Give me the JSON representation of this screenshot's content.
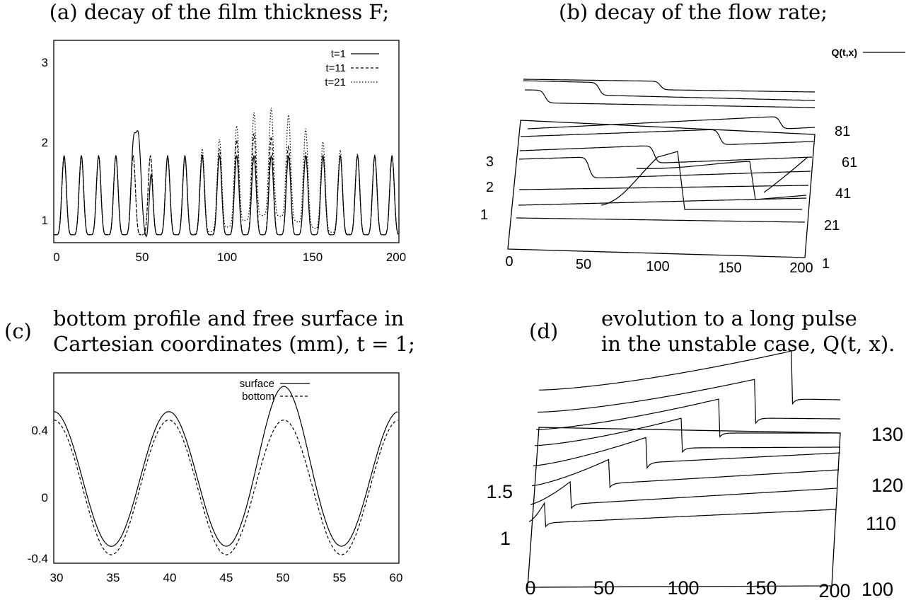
{
  "captions": {
    "a": "(a) decay of the film thickness F;",
    "b": "(b) decay of the flow rate;",
    "c_label": "(c)",
    "c_line1": "bottom profile and free surface in",
    "c_line2": "Cartesian coordinates (mm), t = 1;",
    "d_label": "(d)",
    "d_line1": "evolution to a long pulse",
    "d_line2": "in the unstable case, Q(t, x)."
  },
  "chart_data": [
    {
      "id": "a",
      "type": "line",
      "title": "(a) decay of the film thickness F;",
      "xlim": [
        0,
        200
      ],
      "ylim": [
        0.7,
        3.25
      ],
      "xticks": [
        "0",
        "50",
        "100",
        "150",
        "200"
      ],
      "yticks": [
        "1",
        "2",
        "3"
      ],
      "series": [
        {
          "name": "t=1",
          "dash": "solid"
        },
        {
          "name": "t=11",
          "dash": "dashed"
        },
        {
          "name": "t=21",
          "dash": "dotted"
        }
      ]
    },
    {
      "id": "b",
      "type": "line",
      "title": "(b) decay of the flow rate;",
      "legend": "Q(t,x)",
      "xticks": [
        "0",
        "50",
        "100",
        "150",
        "200"
      ],
      "zticks": [
        "1",
        "2",
        "3"
      ],
      "tticks": [
        "1",
        "21",
        "41",
        "61",
        "81"
      ]
    },
    {
      "id": "c",
      "type": "line",
      "title": "bottom profile and free surface in Cartesian coordinates (mm), t = 1;",
      "xlim": [
        30,
        60
      ],
      "ylim": [
        -0.45,
        0.68
      ],
      "xticks": [
        "30",
        "35",
        "40",
        "45",
        "50",
        "55",
        "60"
      ],
      "yticks": [
        "-0.4",
        "0",
        "0.4"
      ],
      "series": [
        {
          "name": "surface",
          "dash": "solid"
        },
        {
          "name": "bottom",
          "dash": "dashed"
        }
      ]
    },
    {
      "id": "d",
      "type": "line",
      "title": "evolution to a long pulse in the unstable case, Q(t, x).",
      "xticks": [
        "0",
        "50",
        "100",
        "150",
        "200"
      ],
      "zticks": [
        "1",
        "1.5"
      ],
      "tticks": [
        "100",
        "110",
        "120",
        "130"
      ]
    }
  ]
}
